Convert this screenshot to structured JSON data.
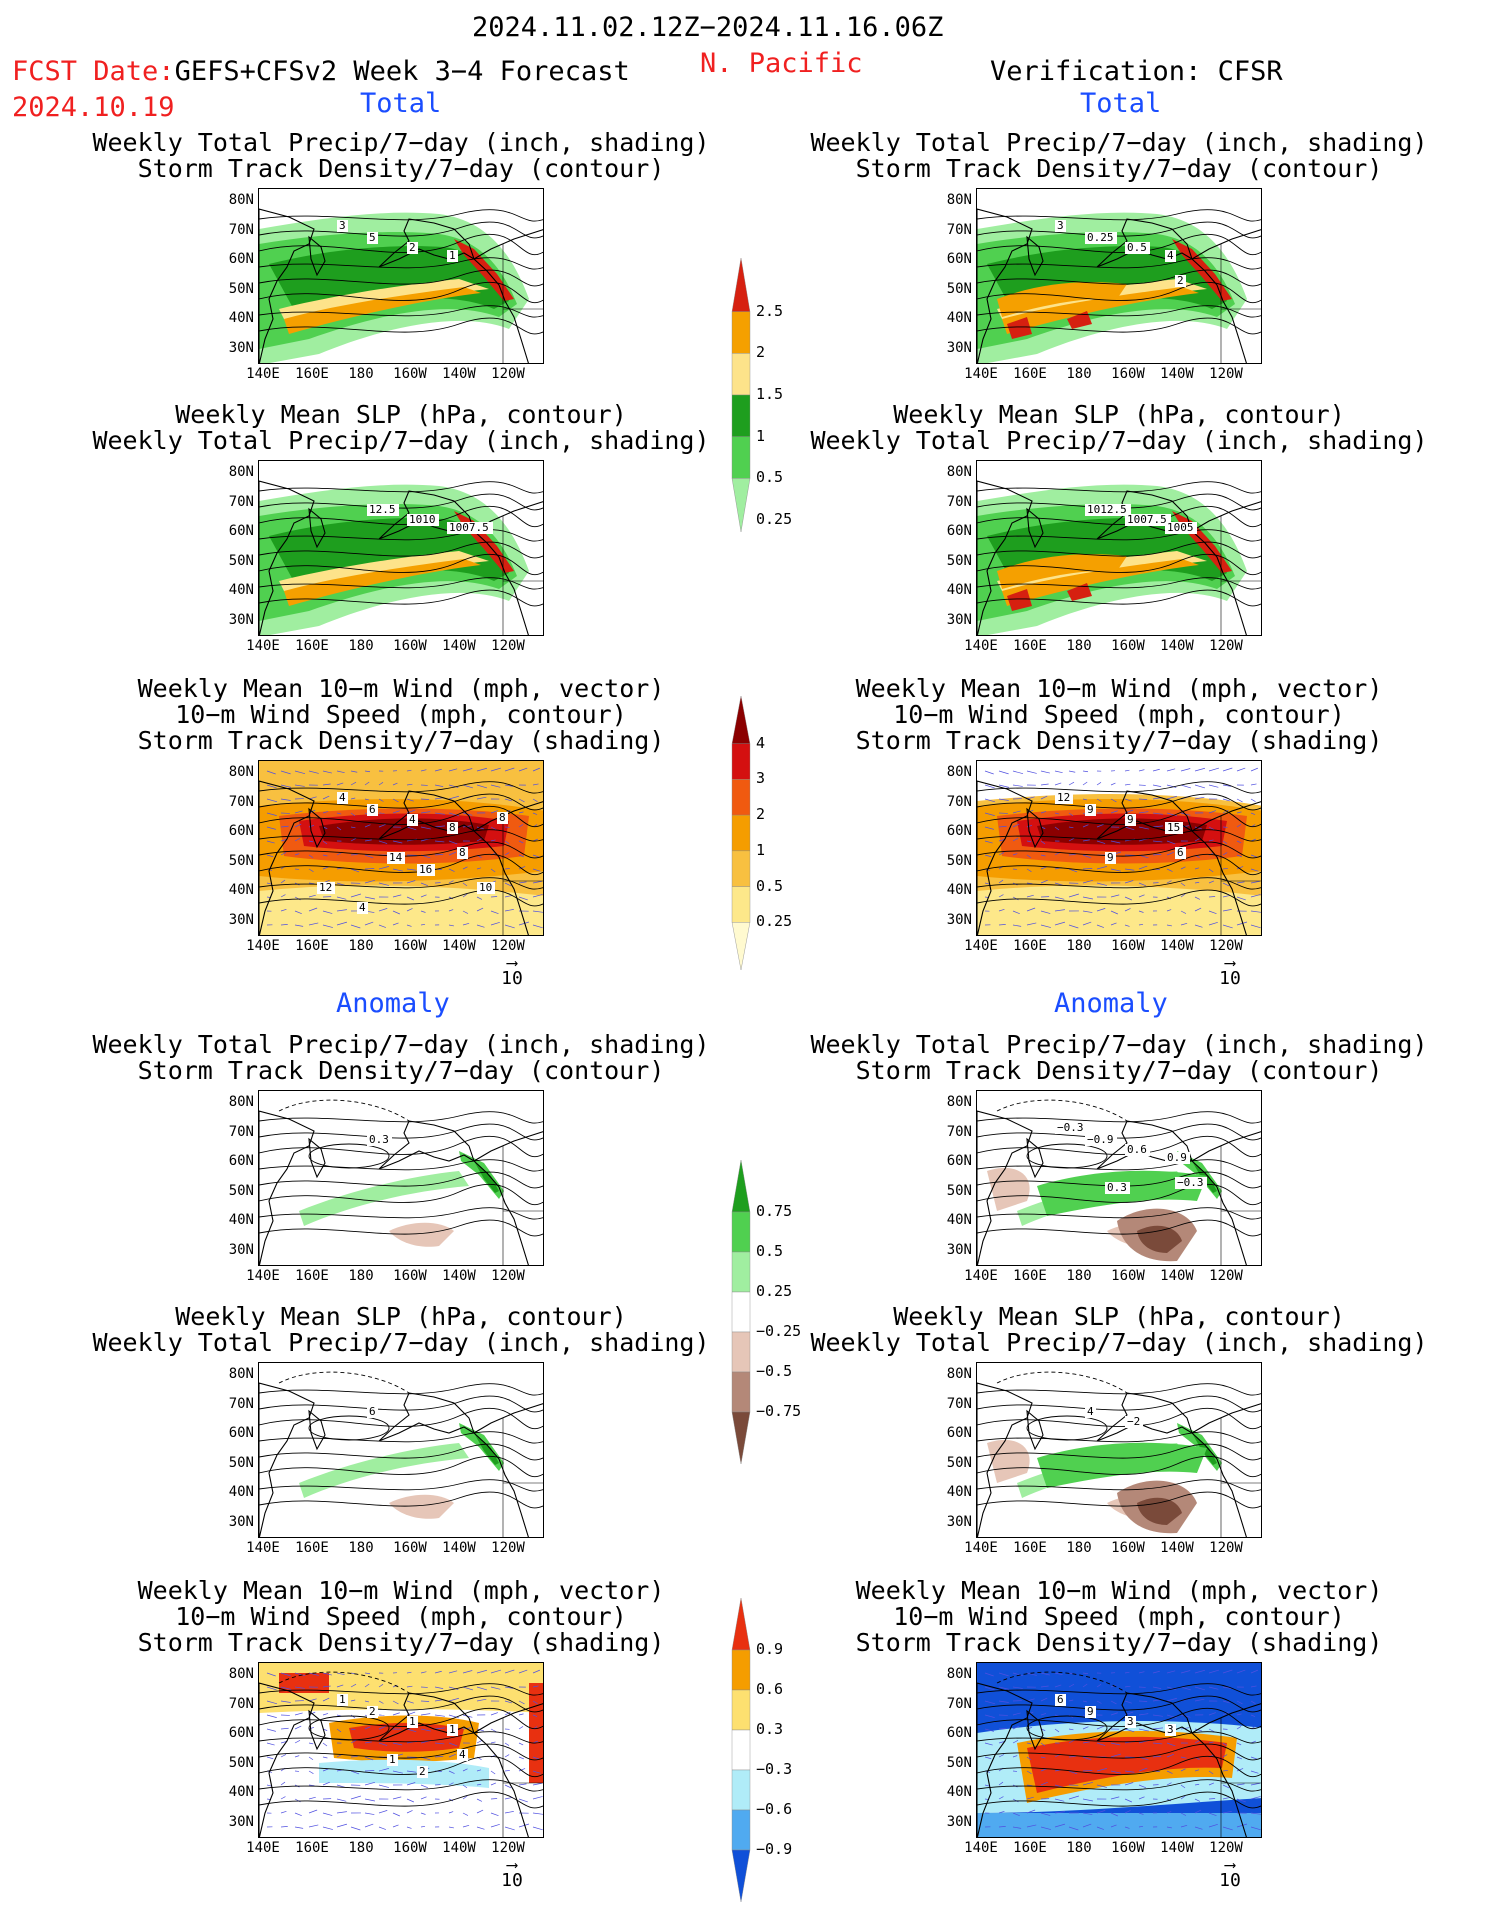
{
  "header": {
    "date_range": "2024.11.02.12Z−2024.11.16.06Z",
    "fcst_date_label": "FCST Date:",
    "fcst_model": "GEFS+CFSv2 Week 3−4 Forecast",
    "fcst_date": "2024.10.19",
    "region": "N. Pacific",
    "verification": "Verification: CFSR"
  },
  "sections": {
    "total": "Total",
    "anomaly": "Anomaly"
  },
  "panel_titles": {
    "precip_storm": [
      "Weekly Total Precip/7−day (inch, shading)",
      "Storm Track Density/7−day (contour)"
    ],
    "slp_precip": [
      "Weekly Mean SLP (hPa, contour)",
      "Weekly Total Precip/7−day (inch, shading)"
    ],
    "wind_storm": [
      "Weekly Mean 10−m Wind (mph, vector)",
      "10−m Wind Speed (mph, contour)",
      "Storm Track Density/7−day (shading)"
    ]
  },
  "axes": {
    "lat_labels": [
      "80N",
      "70N",
      "60N",
      "50N",
      "40N",
      "30N"
    ],
    "lon_labels": [
      "140E",
      "160E",
      "180",
      "160W",
      "140W",
      "120W"
    ]
  },
  "vector_scale": "10",
  "colorbars": {
    "precip_total": {
      "labels": [
        "2.5",
        "2",
        "1.5",
        "1",
        "0.5",
        "0.25"
      ],
      "colors": [
        "#d62010",
        "#f5a000",
        "#fde38a",
        "#1e9e1e",
        "#50d050",
        "#a0eea0"
      ]
    },
    "storm_total": {
      "labels": [
        "4",
        "3",
        "2",
        "1",
        "0.5",
        "0.25"
      ],
      "colors": [
        "#8b0000",
        "#d41010",
        "#f05a10",
        "#f59d00",
        "#f8c040",
        "#fde88a",
        "#fffad0"
      ]
    },
    "precip_anom": {
      "labels": [
        "0.75",
        "0.5",
        "0.25",
        "−0.25",
        "−0.5",
        "−0.75"
      ],
      "colors": [
        "#1e9e1e",
        "#50d050",
        "#a0eea0",
        "#ffffff",
        "#e6c6b8",
        "#b48878",
        "#7a4a3a"
      ]
    },
    "storm_anom": {
      "labels": [
        "0.9",
        "0.6",
        "0.3",
        "−0.3",
        "−0.6",
        "−0.9"
      ],
      "colors": [
        "#e83010",
        "#f59d00",
        "#fde070",
        "#ffffff",
        "#b0ecf8",
        "#50aaf0",
        "#1050d8"
      ]
    }
  },
  "contour_labels": {
    "l_total_precip": [
      "5",
      "2",
      "1",
      "3"
    ],
    "r_total_precip": [
      "0.25",
      "0.5",
      "4",
      "3",
      "2"
    ],
    "l_total_slp": [
      "12.5",
      "1010",
      "1007.5"
    ],
    "r_total_slp": [
      "1012.5",
      "1007.5",
      "1005"
    ],
    "l_total_wind": [
      "6",
      "4",
      "8",
      "4",
      "8",
      "14",
      "16",
      "12",
      "10",
      "4",
      "8"
    ],
    "r_total_wind": [
      "9",
      "9",
      "15",
      "12",
      "6",
      "9"
    ],
    "l_anom_precip": [
      "0.3"
    ],
    "r_anom_precip": [
      "−0.9",
      "0.6",
      "0.9",
      "−0.3",
      "−0.3",
      "0.3"
    ],
    "l_anom_slp": [
      "6"
    ],
    "r_anom_slp": [
      "4",
      "−2"
    ],
    "l_anom_wind": [
      "2",
      "1",
      "1",
      "1",
      "4",
      "1",
      "2"
    ],
    "r_anom_wind": [
      "9",
      "3",
      "3",
      "6"
    ]
  }
}
